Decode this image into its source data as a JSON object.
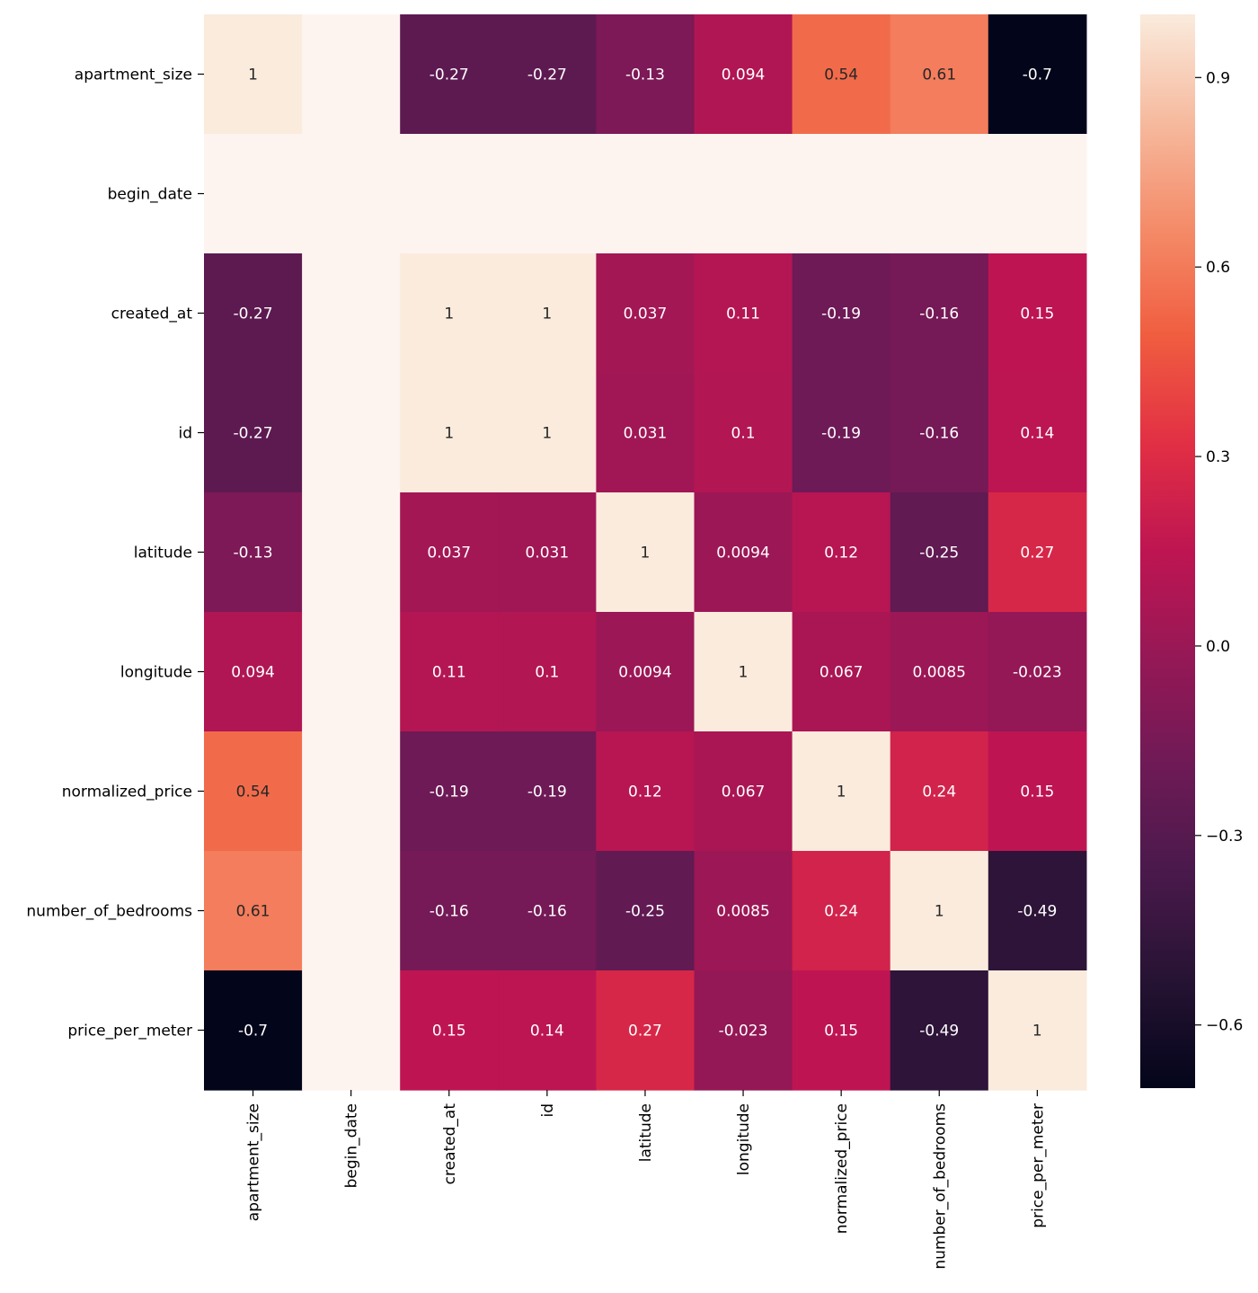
{
  "chart_data": {
    "type": "heatmap",
    "title": "",
    "xlabel": "",
    "ylabel": "",
    "rows": [
      "apartment_size",
      "begin_date",
      "created_at",
      "id",
      "latitude",
      "longitude",
      "normalized_price",
      "number_of_bedrooms",
      "price_per_meter"
    ],
    "columns": [
      "apartment_size",
      "begin_date",
      "created_at",
      "id",
      "latitude",
      "longitude",
      "normalized_price",
      "number_of_bedrooms",
      "price_per_meter"
    ],
    "values": [
      [
        1,
        null,
        -0.27,
        -0.27,
        -0.13,
        0.094,
        0.54,
        0.61,
        -0.7
      ],
      [
        null,
        null,
        null,
        null,
        null,
        null,
        null,
        null,
        null
      ],
      [
        -0.27,
        null,
        1,
        1,
        0.037,
        0.11,
        -0.19,
        -0.16,
        0.15
      ],
      [
        -0.27,
        null,
        1,
        1,
        0.031,
        0.1,
        -0.19,
        -0.16,
        0.14
      ],
      [
        -0.13,
        null,
        0.037,
        0.031,
        1,
        0.0094,
        0.12,
        -0.25,
        0.27
      ],
      [
        0.094,
        null,
        0.11,
        0.1,
        0.0094,
        1,
        0.067,
        0.0085,
        -0.023
      ],
      [
        0.54,
        null,
        -0.19,
        -0.19,
        0.12,
        0.067,
        1,
        0.24,
        0.15
      ],
      [
        0.61,
        null,
        -0.16,
        -0.16,
        -0.25,
        0.0085,
        0.24,
        1,
        -0.49
      ],
      [
        -0.7,
        null,
        0.15,
        0.14,
        0.27,
        -0.023,
        0.15,
        -0.49,
        1
      ]
    ],
    "annotations": [
      [
        "1",
        "",
        "-0.27",
        "-0.27",
        "-0.13",
        "0.094",
        "0.54",
        "0.61",
        "-0.7"
      ],
      [
        "",
        "",
        "",
        "",
        "",
        "",
        "",
        "",
        ""
      ],
      [
        "-0.27",
        "",
        "1",
        "1",
        "0.037",
        "0.11",
        "-0.19",
        "-0.16",
        "0.15"
      ],
      [
        "-0.27",
        "",
        "1",
        "1",
        "0.031",
        "0.1",
        "-0.19",
        "-0.16",
        "0.14"
      ],
      [
        "-0.13",
        "",
        "0.037",
        "0.031",
        "1",
        "0.0094",
        "0.12",
        "-0.25",
        "0.27"
      ],
      [
        "0.094",
        "",
        "0.11",
        "0.1",
        "0.0094",
        "1",
        "0.067",
        "0.0085",
        "-0.023"
      ],
      [
        "0.54",
        "",
        "-0.19",
        "-0.19",
        "0.12",
        "0.067",
        "1",
        "0.24",
        "0.15"
      ],
      [
        "0.61",
        "",
        "-0.16",
        "-0.16",
        "-0.25",
        "0.0085",
        "0.24",
        "1",
        "-0.49"
      ],
      [
        "-0.7",
        "",
        "0.15",
        "0.14",
        "0.27",
        "-0.023",
        "0.15",
        "-0.49",
        "1"
      ]
    ],
    "missing_cell_color": "#fdf4f0",
    "colorscale": "rocket",
    "vmin": -0.7,
    "vmax": 1,
    "colorbar": {
      "ticks": [
        0.9,
        0.6,
        0.3,
        0.0,
        -0.3,
        -0.6
      ],
      "tick_labels": [
        "0.9",
        "0.6",
        "0.3",
        "0.0",
        "−0.3",
        "−0.6"
      ],
      "placement": "right"
    },
    "grid": false
  }
}
